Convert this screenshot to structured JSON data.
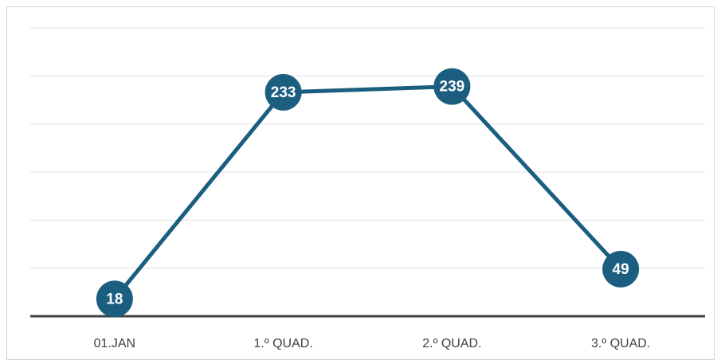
{
  "chart_data": {
    "type": "line",
    "categories": [
      "01.JAN",
      "1.º QUAD.",
      "2.º QUAD.",
      "3.º QUAD."
    ],
    "values": [
      18,
      233,
      239,
      49
    ],
    "color": "#1b5e80",
    "ylim": [
      0,
      300
    ],
    "yticks": [
      0,
      50,
      100,
      150,
      200,
      250,
      300
    ],
    "grid": true
  }
}
